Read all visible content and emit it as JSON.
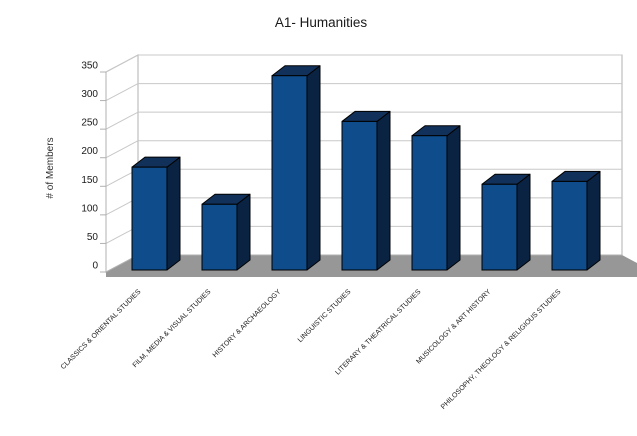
{
  "chart_data": {
    "type": "bar",
    "style": "3d-column",
    "title": "A1- Humanities",
    "xlabel": "",
    "ylabel": "# of Members",
    "categories": [
      "CLASSICS & ORIENTAL STUDIES",
      "FILM, MEDIA & VISUAL STUDIES",
      "HISTORY & ARCHAEOLOGY",
      "LINGUISTIC STUDIES",
      "LITERARY & THEATRICAL STUDIES",
      "MUSICOLOGY & ART HISTORY",
      "PHILOSOPHY, THEOLOGY & RELIGIOUS STUDIES"
    ],
    "values": [
      180,
      115,
      340,
      260,
      235,
      150,
      155
    ],
    "ylim": [
      0,
      350
    ],
    "ytick_interval": 50,
    "grid": true,
    "legend": "none",
    "series_name": "# of Members",
    "colors": {
      "bar_front": "#0E4C8C",
      "bar_top": "#12315A",
      "bar_side": "#0B2342",
      "bar_outline": "#000000",
      "wall_fill": "#FFFFFF",
      "wall_border": "#B0B0B0",
      "gridline": "#C8C8C8",
      "floor": "#979797",
      "axis_text": "#1A1A1A",
      "title_text": "#1A1A1A",
      "background": "#FFFFFF"
    }
  }
}
